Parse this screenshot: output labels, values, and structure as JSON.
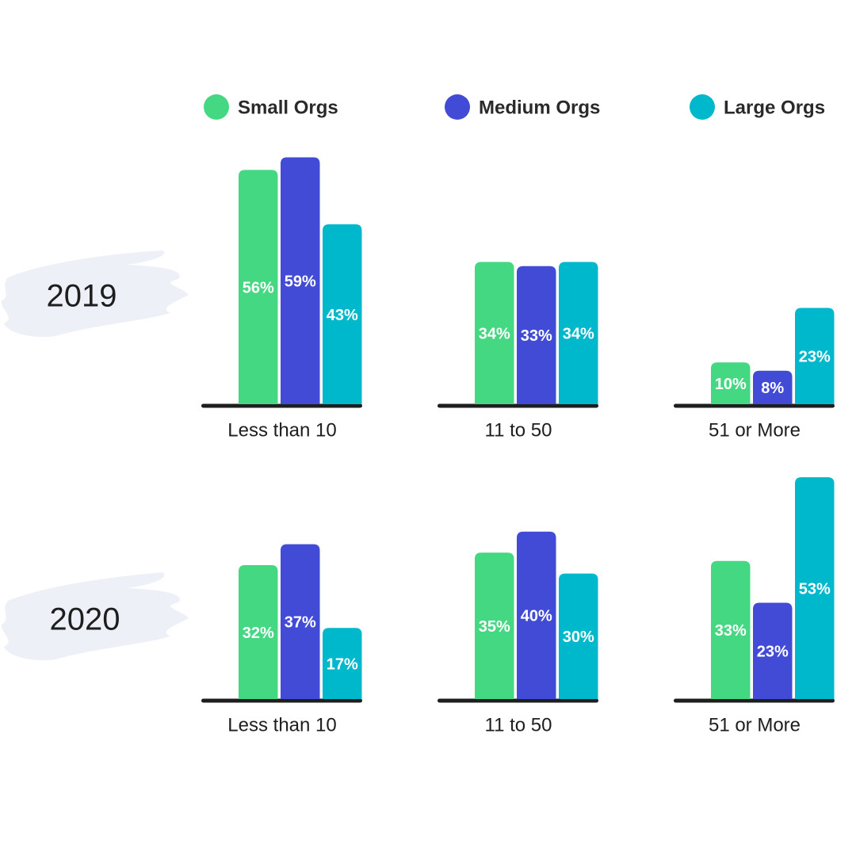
{
  "chart_data": [
    {
      "type": "bar",
      "title": "2019",
      "categories": [
        "Less than 10",
        "11 to 50",
        "51 or More"
      ],
      "series": [
        {
          "name": "Small Orgs",
          "color": "#45d882",
          "values": [
            56,
            34,
            10
          ],
          "value_labels": [
            "56%",
            "34%",
            "10%"
          ]
        },
        {
          "name": "Medium Orgs",
          "color": "#414bd6",
          "values": [
            59,
            33,
            8
          ],
          "value_labels": [
            "59%",
            "33%",
            "8%"
          ]
        },
        {
          "name": "Large Orgs",
          "color": "#00b8cc",
          "values": [
            43,
            34,
            23
          ],
          "value_labels": [
            "43%",
            "34%",
            "23%"
          ]
        }
      ]
    },
    {
      "type": "bar",
      "title": "2020",
      "categories": [
        "Less than 10",
        "11 to 50",
        "51 or More"
      ],
      "series": [
        {
          "name": "Small Orgs",
          "color": "#45d882",
          "values": [
            32,
            35,
            33
          ],
          "value_labels": [
            "32%",
            "35%",
            "33%"
          ]
        },
        {
          "name": "Medium Orgs",
          "color": "#414bd6",
          "values": [
            37,
            40,
            23
          ],
          "value_labels": [
            "37%",
            "40%",
            "23%"
          ]
        },
        {
          "name": "Large Orgs",
          "color": "#00b8cc",
          "values": [
            17,
            30,
            53
          ],
          "value_labels": [
            "17%",
            "30%",
            "53%"
          ]
        }
      ]
    }
  ]
}
